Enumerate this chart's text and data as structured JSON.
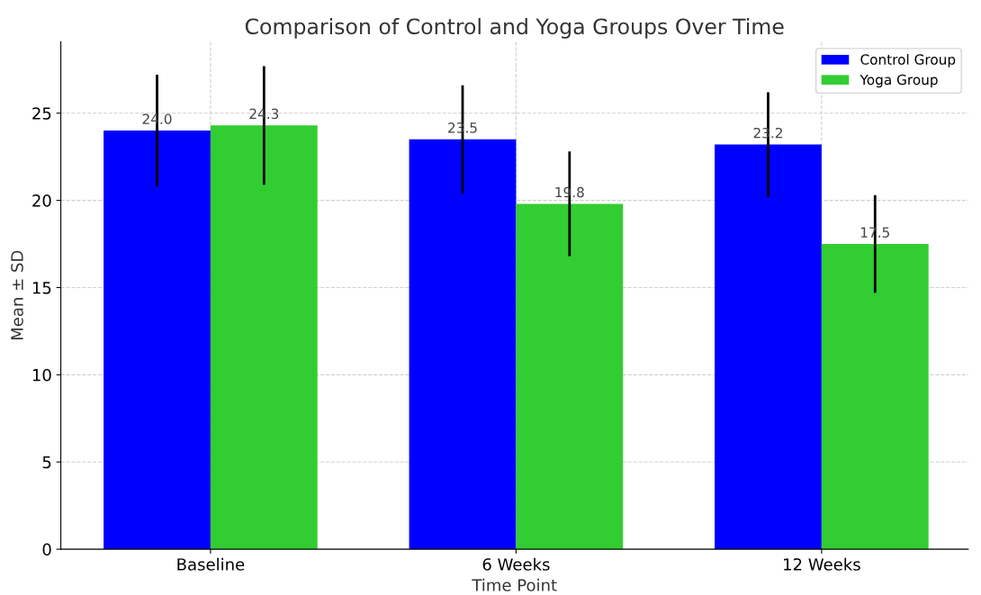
{
  "chart_data": {
    "type": "bar",
    "title": "Comparison of Control and Yoga Groups Over Time",
    "xlabel": "Time Point",
    "ylabel": "Mean ± SD",
    "categories": [
      "Baseline",
      "6 Weeks",
      "12 Weeks"
    ],
    "series": [
      {
        "name": "Control Group",
        "color": "#0000ff",
        "values": [
          24.0,
          23.5,
          23.2
        ],
        "errors": [
          3.2,
          3.1,
          3.0
        ],
        "value_labels": [
          "24.0",
          "23.5",
          "23.2"
        ]
      },
      {
        "name": "Yoga Group",
        "color": "#32cd32",
        "values": [
          24.3,
          19.8,
          17.5
        ],
        "errors": [
          3.4,
          3.0,
          2.8
        ],
        "value_labels": [
          "24.3",
          "19.8",
          "17.5"
        ]
      }
    ],
    "ylim": [
      0,
      29.1
    ],
    "yticks": [
      0,
      5,
      10,
      15,
      20,
      25
    ],
    "grid": true,
    "legend": "top right"
  }
}
